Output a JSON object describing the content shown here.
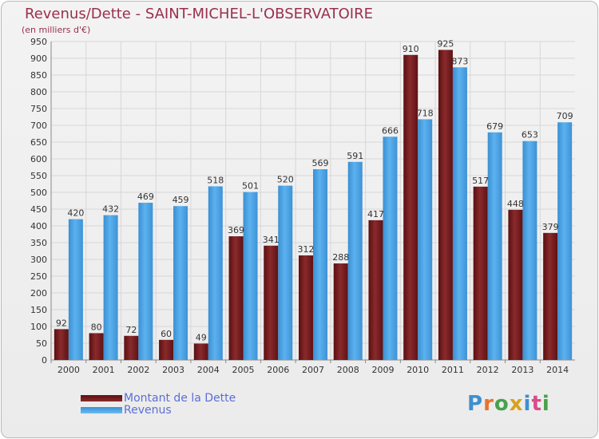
{
  "header": {
    "title": "Revenus/Dette - SAINT-MICHEL-L'OBSERVATOIRE",
    "subtitle": "(en milliers d'€)"
  },
  "legend": {
    "items": [
      {
        "label": "Montant de la Dette",
        "color": "#7a1c1f"
      },
      {
        "label": "Revenus",
        "color": "#4ea6e6"
      }
    ]
  },
  "logo": {
    "text": "Proxiti"
  },
  "chart_data": {
    "type": "bar",
    "title": "Revenus/Dette - SAINT-MICHEL-L'OBSERVATOIRE",
    "subtitle": "(en milliers d'€)",
    "xlabel": "",
    "ylabel": "",
    "ylim": [
      0,
      950
    ],
    "ytick_step": 50,
    "grid": true,
    "legend_position": "bottom-left",
    "categories": [
      "2000",
      "2001",
      "2002",
      "2003",
      "2004",
      "2005",
      "2006",
      "2007",
      "2008",
      "2009",
      "2010",
      "2011",
      "2012",
      "2013",
      "2014"
    ],
    "series": [
      {
        "name": "Montant de la Dette",
        "color": "#7a1c1f",
        "values": [
          92,
          80,
          72,
          60,
          49,
          369,
          341,
          312,
          288,
          417,
          910,
          925,
          517,
          448,
          379
        ]
      },
      {
        "name": "Revenus",
        "color": "#4ea6e6",
        "values": [
          420,
          432,
          469,
          459,
          518,
          501,
          520,
          569,
          591,
          666,
          718,
          873,
          679,
          653,
          709
        ]
      }
    ]
  }
}
